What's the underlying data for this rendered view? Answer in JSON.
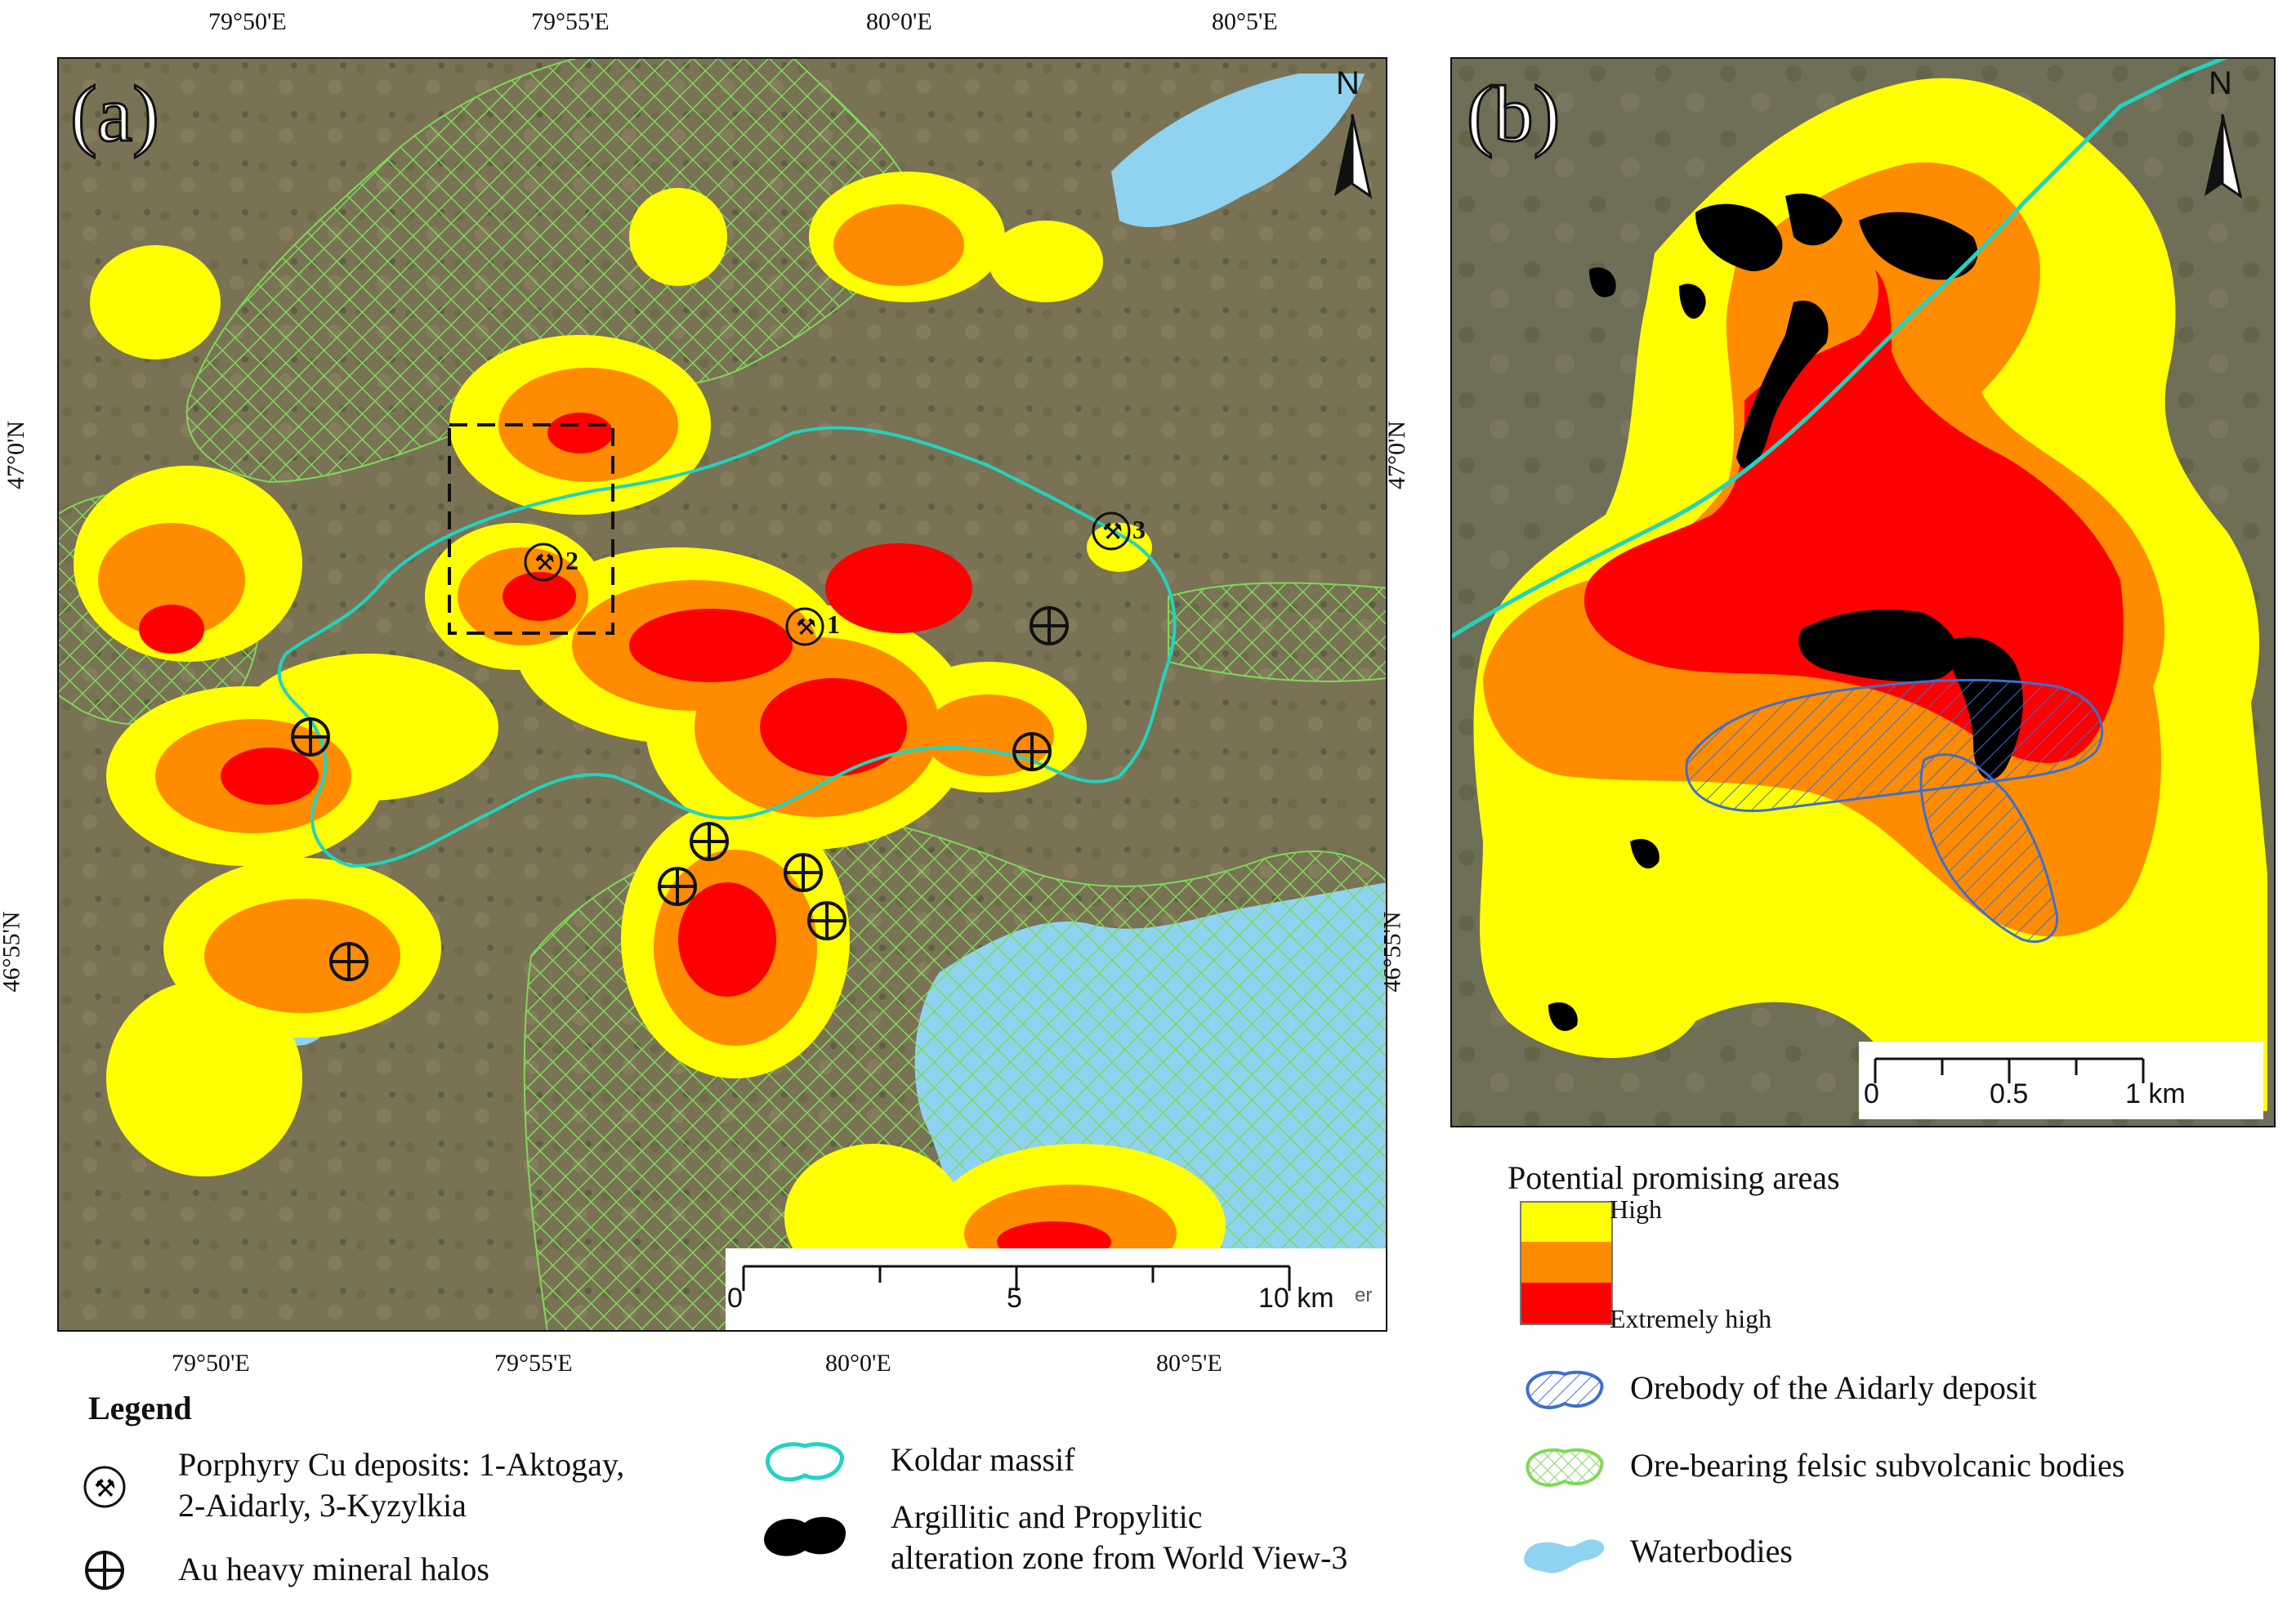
{
  "panel_a": {
    "label": "(a)",
    "north": "N",
    "top_ticks": [
      "79°50'E",
      "79°55'E",
      "80°0'E",
      "80°5'E"
    ],
    "bottom_ticks": [
      "79°50'E",
      "79°55'E",
      "80°0'E",
      "80°5'E"
    ],
    "left_ticks": [
      "47°0'N",
      "46°55'N"
    ],
    "right_ticks": [
      "47°0'N",
      "46°55'N"
    ],
    "scale": {
      "labels": [
        "0",
        "5",
        "10 km"
      ]
    },
    "deposit_numbers": [
      "1",
      "2",
      "3"
    ],
    "credit_fragment": "er"
  },
  "panel_b": {
    "label": "(b)",
    "north": "N",
    "scale": {
      "labels": [
        "0",
        "0.5",
        "1 km"
      ]
    }
  },
  "potential": {
    "title": "Potential promising areas",
    "high_label": "High",
    "extreme_label": "Extremely high",
    "colors": {
      "high": "#ffff00",
      "mid": "#ff8c00",
      "extreme": "#ff0000"
    }
  },
  "legend": {
    "title": "Legend",
    "porphyry_line1": "Porphyry Cu deposits: 1-Aktogay,",
    "porphyry_line2": "2-Aidarly, 3-Kyzylkia",
    "au_halos": "Au heavy mineral halos",
    "koldar": "Koldar massif",
    "alteration_line1": "Argillitic and Propylitic",
    "alteration_line2": "alteration zone from World View-3",
    "orebody": "Orebody of the Aidarly deposit",
    "felsic": "Ore-bearing felsic subvolcanic bodies",
    "water": "Waterbodies"
  },
  "colors": {
    "background": "#7a7254",
    "koldar": "#22d3c0",
    "felsic": "#7ed957",
    "water": "#8fd3f0",
    "orebody": "#3b6fd1"
  }
}
